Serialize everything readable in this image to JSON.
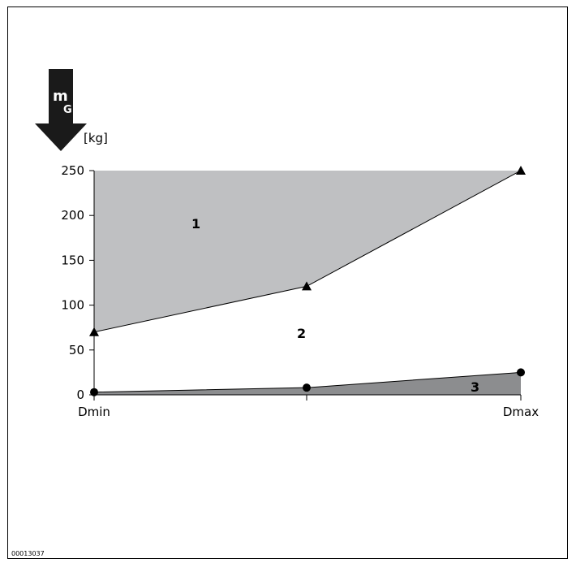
{
  "chart_data": {
    "type": "area",
    "y_symbol": "m",
    "y_symbol_sub": "G",
    "y_unit": "[kg]",
    "ylim": [
      0,
      250
    ],
    "yticks": [
      0,
      50,
      100,
      150,
      200,
      250
    ],
    "x_categories": [
      "Dmin",
      "",
      "Dmax"
    ],
    "upper_curve": [
      70,
      121,
      250
    ],
    "lower_curve": [
      3,
      8,
      25
    ],
    "regions": [
      "1",
      "2",
      "3"
    ],
    "grid": false,
    "colors": {
      "region1": "#bfc0c2",
      "region3": "#8c8d8f"
    }
  },
  "figure_code": "00013037"
}
